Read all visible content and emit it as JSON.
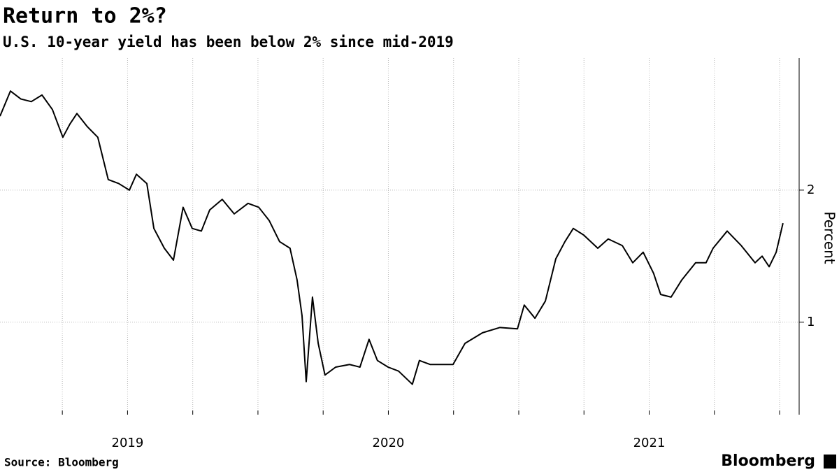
{
  "chart_data": {
    "type": "line",
    "title": "Return to 2%?",
    "subtitle": "U.S. 10-year yield has been below 2% since mid-2019",
    "y_label": "Percent",
    "source": "Source: Bloomberg",
    "brand": "Bloomberg",
    "color": "#000000",
    "x": [
      2019.011,
      2019.051,
      2019.091,
      2019.131,
      2019.172,
      2019.212,
      2019.252,
      2019.279,
      2019.306,
      2019.346,
      2019.386,
      2019.426,
      2019.466,
      2019.507,
      2019.534,
      2019.574,
      2019.601,
      2019.641,
      2019.676,
      2019.713,
      2019.748,
      2019.783,
      2019.815,
      2019.863,
      2019.909,
      2019.962,
      2020.003,
      2020.043,
      2020.083,
      2020.123,
      2020.15,
      2020.169,
      2020.185,
      2020.209,
      2020.231,
      2020.257,
      2020.298,
      2020.351,
      2020.391,
      2020.426,
      2020.458,
      2020.499,
      2020.539,
      2020.592,
      2020.619,
      2020.66,
      2020.7,
      2020.748,
      2020.794,
      2020.861,
      2020.928,
      2020.995,
      2021.021,
      2021.062,
      2021.102,
      2021.142,
      2021.177,
      2021.209,
      2021.249,
      2021.303,
      2021.343,
      2021.397,
      2021.437,
      2021.477,
      2021.517,
      2021.544,
      2021.584,
      2021.625,
      2021.678,
      2021.718,
      2021.745,
      2021.799,
      2021.853,
      2021.906,
      2021.933,
      2021.96,
      2021.987,
      2022.013
    ],
    "values": [
      2.56,
      2.75,
      2.69,
      2.67,
      2.72,
      2.61,
      2.4,
      2.5,
      2.58,
      2.48,
      2.4,
      2.08,
      2.05,
      2.0,
      2.12,
      2.05,
      1.71,
      1.56,
      1.47,
      1.87,
      1.71,
      1.69,
      1.85,
      1.93,
      1.82,
      1.9,
      1.87,
      1.77,
      1.61,
      1.56,
      1.32,
      1.05,
      0.55,
      1.19,
      0.84,
      0.6,
      0.66,
      0.68,
      0.66,
      0.87,
      0.71,
      0.66,
      0.63,
      0.53,
      0.71,
      0.68,
      0.68,
      0.68,
      0.84,
      0.92,
      0.96,
      0.95,
      1.13,
      1.03,
      1.16,
      1.48,
      1.61,
      1.71,
      1.66,
      1.56,
      1.63,
      1.58,
      1.45,
      1.53,
      1.37,
      1.21,
      1.19,
      1.32,
      1.45,
      1.45,
      1.56,
      1.69,
      1.58,
      1.45,
      1.5,
      1.42,
      1.53,
      1.75
    ],
    "xlim": [
      2019.011,
      2022.075
    ],
    "xticks": [
      {
        "value": 2019.5,
        "label": "2019"
      },
      {
        "value": 2020.5,
        "label": "2020"
      },
      {
        "value": 2021.5,
        "label": "2021"
      }
    ],
    "xgrid": [
      2019.25,
      2019.5,
      2019.75,
      2020.0,
      2020.25,
      2020.5,
      2020.75,
      2021.0,
      2021.25,
      2021.5,
      2021.75,
      2022.0
    ],
    "ylim": [
      0.3,
      3.0
    ],
    "yticks": [
      1,
      2
    ],
    "grid": true
  }
}
